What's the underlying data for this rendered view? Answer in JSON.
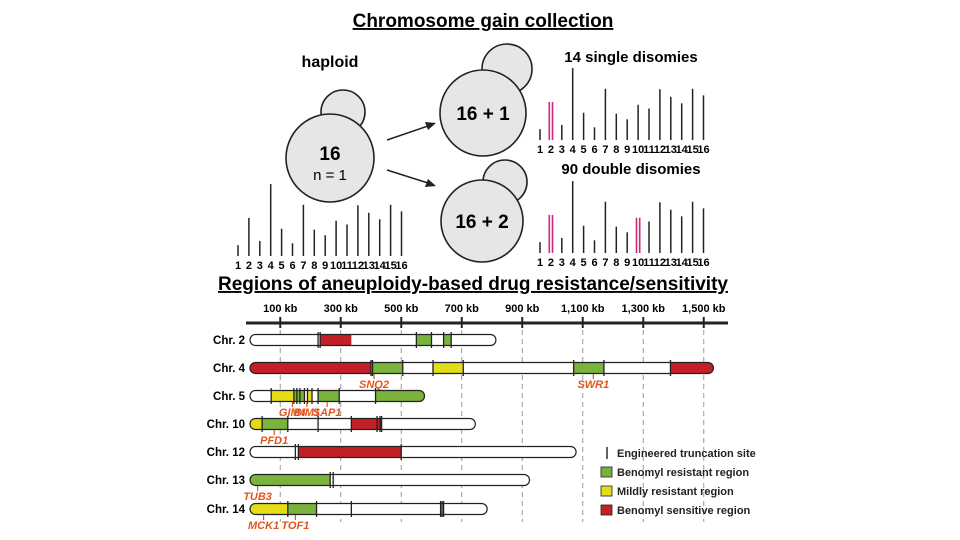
{
  "titles": {
    "top": "Chromosome gain collection",
    "bottom": "Regions of aneuploidy-based drug resistance/sensitivity"
  },
  "cells": {
    "haploid_label": "haploid",
    "haploid_count": "16",
    "haploid_ploidy": "n = 1",
    "single_count": "16 + 1",
    "double_count": "16 + 2",
    "single_label": "14 single disomies",
    "double_label": "90 double disomies"
  },
  "karyotype": {
    "numbers": [
      "1",
      "2",
      "3",
      "4",
      "5",
      "6",
      "7",
      "8",
      "9",
      "10",
      "11",
      "12",
      "13",
      "14",
      "15",
      "16"
    ],
    "relative_lengths": [
      0.23,
      0.81,
      0.32,
      1.53,
      0.58,
      0.27,
      1.09,
      0.56,
      0.44,
      0.75,
      0.67,
      1.08,
      0.92,
      0.78,
      1.09,
      0.95
    ],
    "single_highlight": [
      2
    ],
    "double_highlight": [
      2,
      10
    ]
  },
  "colors": {
    "benomyl_resistant": "#7ab33b",
    "mildly_resistant": "#e3dc17",
    "benomyl_sensitive": "#c31f26",
    "gene_label": "#e2571f",
    "disomy_highlight": "#d0247e",
    "cell_fill": "#e6e6e6"
  },
  "scale": {
    "ticks": [
      "100 kb",
      "300 kb",
      "500 kb",
      "700 kb",
      "900 kb",
      "1,100 kb",
      "1,300 kb",
      "1,500 kb"
    ],
    "tick_values_kb": [
      100,
      300,
      500,
      700,
      900,
      1100,
      1300,
      1500
    ]
  },
  "chromosomes": [
    {
      "label": "Chr. 2",
      "length_kb": 813,
      "regions": [
        {
          "start_kb": 230,
          "end_kb": 335,
          "type": "benomyl_sensitive"
        },
        {
          "start_kb": 550,
          "end_kb": 600,
          "type": "benomyl_resistant"
        },
        {
          "start_kb": 640,
          "end_kb": 665,
          "type": "benomyl_resistant"
        }
      ],
      "sites_kb": [
        225,
        232,
        550,
        600,
        640,
        665
      ],
      "genes": []
    },
    {
      "label": "Chr. 4",
      "length_kb": 1532,
      "regions": [
        {
          "start_kb": 0,
          "end_kb": 400,
          "type": "benomyl_sensitive"
        },
        {
          "start_kb": 405,
          "end_kb": 505,
          "type": "benomyl_resistant"
        },
        {
          "start_kb": 605,
          "end_kb": 705,
          "type": "mildly_resistant"
        },
        {
          "start_kb": 1070,
          "end_kb": 1170,
          "type": "benomyl_resistant"
        },
        {
          "start_kb": 1390,
          "end_kb": 1532,
          "type": "benomyl_sensitive"
        }
      ],
      "sites_kb": [
        400,
        405,
        505,
        605,
        705,
        1070,
        1170,
        1390
      ],
      "genes": [
        {
          "name": "SNQ2",
          "pos_kb": 410
        },
        {
          "name": "SWR1",
          "pos_kb": 1135
        }
      ]
    },
    {
      "label": "Chr. 5",
      "length_kb": 577,
      "regions": [
        {
          "start_kb": 70,
          "end_kb": 145,
          "type": "mildly_resistant"
        },
        {
          "start_kb": 145,
          "end_kb": 180,
          "type": "benomyl_resistant"
        },
        {
          "start_kb": 190,
          "end_kb": 205,
          "type": "mildly_resistant"
        },
        {
          "start_kb": 225,
          "end_kb": 295,
          "type": "benomyl_resistant"
        },
        {
          "start_kb": 415,
          "end_kb": 577,
          "type": "benomyl_resistant"
        }
      ],
      "sites_kb": [
        70,
        145,
        155,
        165,
        180,
        190,
        205,
        225,
        295,
        415
      ],
      "genes": [
        {
          "name": "GIM4",
          "pos_kb": 140
        },
        {
          "name": "BIM1",
          "pos_kb": 188
        },
        {
          "name": "SAP1",
          "pos_kb": 255
        }
      ]
    },
    {
      "label": "Chr. 10",
      "length_kb": 745,
      "regions": [
        {
          "start_kb": 0,
          "end_kb": 80,
          "type": "mildly_resistant"
        },
        {
          "start_kb": 40,
          "end_kb": 125,
          "type": "benomyl_resistant"
        },
        {
          "start_kb": 335,
          "end_kb": 435,
          "type": "benomyl_sensitive"
        }
      ],
      "sites_kb": [
        40,
        125,
        225,
        335,
        420,
        430,
        435
      ],
      "genes": [
        {
          "name": "PFD1",
          "pos_kb": 80
        }
      ]
    },
    {
      "label": "Chr. 12",
      "length_kb": 1078,
      "regions": [
        {
          "start_kb": 160,
          "end_kb": 500,
          "type": "benomyl_sensitive"
        }
      ],
      "sites_kb": [
        150,
        160,
        500
      ],
      "genes": []
    },
    {
      "label": "Chr. 13",
      "length_kb": 924,
      "regions": [
        {
          "start_kb": 0,
          "end_kb": 265,
          "type": "benomyl_resistant"
        }
      ],
      "sites_kb": [
        265,
        275
      ],
      "genes": [
        {
          "name": "TUB3",
          "pos_kb": 25
        }
      ]
    },
    {
      "label": "Chr. 14",
      "length_kb": 784,
      "regions": [
        {
          "start_kb": 0,
          "end_kb": 125,
          "type": "mildly_resistant"
        },
        {
          "start_kb": 125,
          "end_kb": 220,
          "type": "benomyl_resistant"
        }
      ],
      "sites_kb": [
        125,
        220,
        335,
        630,
        635,
        640
      ],
      "genes": [
        {
          "name": "MCK1",
          "pos_kb": 45
        },
        {
          "name": "TOF1",
          "pos_kb": 150
        }
      ]
    }
  ],
  "legend": [
    {
      "label": "Engineered truncation site",
      "kind": "site"
    },
    {
      "label": "Benomyl resistant region",
      "kind": "benomyl_resistant"
    },
    {
      "label": "Mildly resistant region",
      "kind": "mildly_resistant"
    },
    {
      "label": "Benomyl sensitive region",
      "kind": "benomyl_sensitive"
    }
  ]
}
